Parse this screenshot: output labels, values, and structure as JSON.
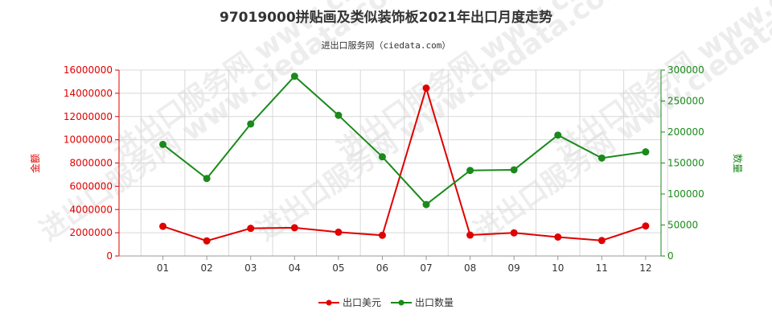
{
  "chart_data": {
    "type": "line",
    "title": "97019000拼贴画及类似装饰板2021年出口月度走势",
    "subtitle": "进出口服务网（ciedata.com）",
    "categories": [
      "01",
      "02",
      "03",
      "04",
      "05",
      "06",
      "07",
      "08",
      "09",
      "10",
      "11",
      "12"
    ],
    "y_left": {
      "label": "金额",
      "range": [
        0,
        16000000
      ],
      "ticks": [
        "0",
        "2000000",
        "4000000",
        "6000000",
        "8000000",
        "10000000",
        "12000000",
        "14000000",
        "16000000"
      ],
      "color": "#e00000"
    },
    "y_right": {
      "label": "数量",
      "range": [
        0,
        300000
      ],
      "ticks": [
        "0",
        "50000",
        "100000",
        "150000",
        "200000",
        "250000",
        "300000"
      ],
      "color": "#1a8a1a"
    },
    "series": [
      {
        "name": "出口美元",
        "axis": "left",
        "color": "#e00000",
        "values": [
          2550000,
          1300000,
          2380000,
          2430000,
          2050000,
          1780000,
          14450000,
          1800000,
          1990000,
          1630000,
          1330000,
          2580000
        ]
      },
      {
        "name": "出口数量",
        "axis": "right",
        "color": "#1a8a1a",
        "values": [
          180000,
          125000,
          213000,
          290000,
          227000,
          160000,
          83000,
          138000,
          139000,
          195000,
          158000,
          168000
        ]
      }
    ],
    "grid": true,
    "legend_position": "bottom-center",
    "watermark": "进出口服务网 www.ciedata.com"
  }
}
